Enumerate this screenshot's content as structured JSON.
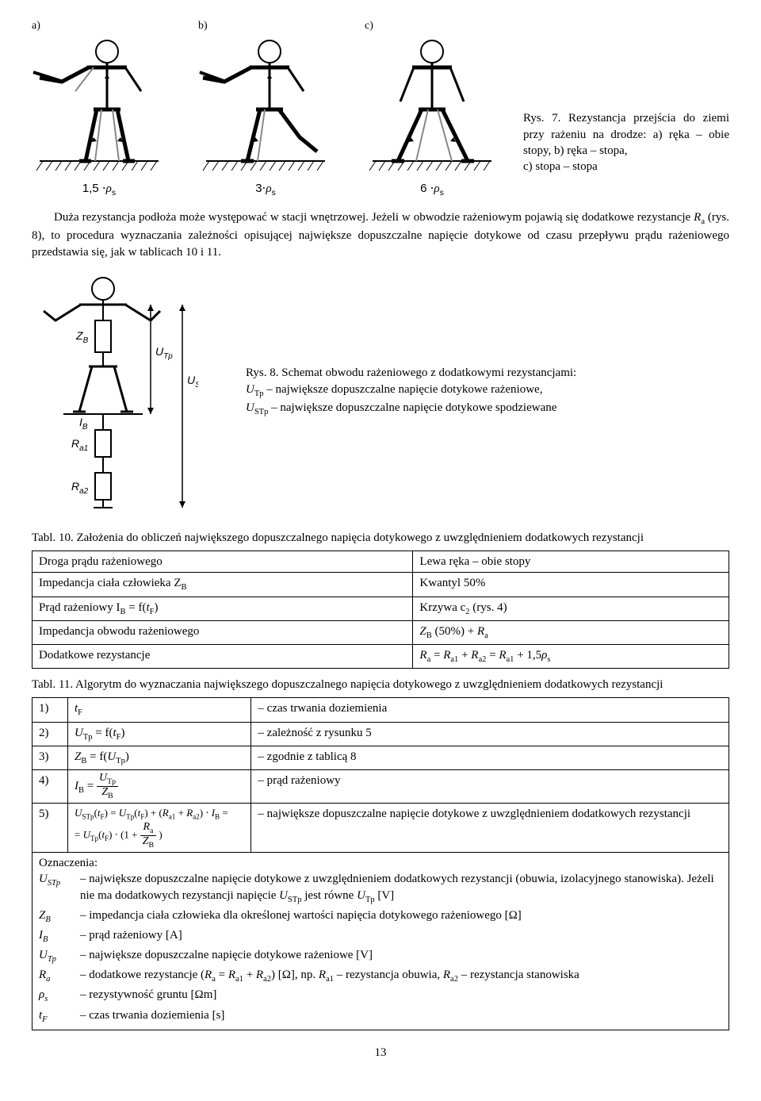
{
  "fig7": {
    "labels": [
      "a)",
      "b)",
      "c)"
    ],
    "rhos": [
      "1,5 ⋅",
      "3⋅",
      "6 ⋅"
    ],
    "rho_var": "ρ",
    "rho_sub": "s",
    "caption_head": "Rys. 7. Rezystancja przejścia do ziemi przy rażeniu na drodze: a) ręka – obie stopy, b) ręka – stopa,",
    "caption_line2": "c) stopa – stopa"
  },
  "para1": "Duża rezystancja podłoża może występować w stacji wnętrzowej. Jeżeli w obwodzie rażeniowym pojawią się dodatkowe rezystancje ",
  "para1_Ra": "R",
  "para1_a": "a",
  "para1_cont": " (rys. 8), to procedura wyznaczania zależności opisującej największe dopuszczalne napięcie dotykowe od czasu przepływu prądu rażeniowego przedstawia się, jak w tablicach 10 i 11.",
  "fig8": {
    "svg_labels": {
      "ZB": "Z",
      "ZB_sub": "B",
      "UTp": "U",
      "UTp_sub": "Tp",
      "USTp": "U",
      "USTp_sub": "STp",
      "IB": "I",
      "IB_sub": "B",
      "Ra1": "R",
      "Ra1_sub": "a1",
      "Ra2": "R",
      "Ra2_sub": "a2"
    },
    "caption_head": "Rys. 8. Schemat obwodu rażeniowego z dodatkowymi rezystancjami:",
    "caption_l2_sym": "U",
    "caption_l2_sub": "Tp",
    "caption_l2_txt": " – największe dopuszczalne napięcie dotykowe rażeniowe,",
    "caption_l3_sym": "U",
    "caption_l3_sub": "STp",
    "caption_l3_txt": " – największe dopuszczalne napięcie dotykowe spodziewane"
  },
  "tab10": {
    "title": "Tabl. 10. Założenia do obliczeń największego dopuszczalnego napięcia dotykowego z uwzględnieniem dodatkowych rezystancji",
    "rows": [
      [
        "Droga prądu rażeniowego",
        "Lewa ręka – obie stopy"
      ],
      [
        "Impedancja ciała człowieka Z",
        "Kwantyl 50%"
      ],
      [
        "Prąd rażeniowy I",
        "Krzywa c"
      ],
      [
        "Impedancja obwodu rażeniowego",
        "Z"
      ],
      [
        "Dodatkowe rezystancje",
        "R"
      ]
    ],
    "row1_r_sub": "B",
    "row2_l_sub": "B",
    "row2_l_txt": " = f(",
    "row2_l_var": "t",
    "row2_l_var_sub": "F",
    "row2_l_end": ")",
    "row2_r_sub": "2",
    "row2_r_txt": " (rys. 4)",
    "row3_r_sub": "B",
    "row3_r_txt": " (50%) + ",
    "row3_r_var": "R",
    "row3_r_var_sub": "a",
    "row4_r": {
      "Ra_sub_a": "a",
      "eq": " = ",
      "Ra1_sub": "a1",
      "plus": " + ",
      "Ra2_sub": "a2",
      "eq2": " = ",
      "Ra1b_sub": "a1",
      "plus2": " + 1,5",
      "rho": "ρ",
      "rho_sub": "s"
    }
  },
  "tab11": {
    "title": "Tabl. 11. Algorytm do wyznaczania największego dopuszczalnego napięcia dotykowego z uwzględnieniem dodatkowych rezystancji",
    "rows": {
      "1": {
        "n": "1)",
        "l_var": "t",
        "l_sub": "F",
        "r": "– czas trwania doziemienia"
      },
      "2": {
        "n": "2)",
        "l_pre": "U",
        "l_sub": "Tp",
        "l_mid": " = f(",
        "l_var2": "t",
        "l_sub2": "F",
        "l_end": ")",
        "r": "– zależność z rysunku 5"
      },
      "3": {
        "n": "3)",
        "l_pre": "Z",
        "l_sub": "B",
        "l_mid": " = f(",
        "l_var2": "U",
        "l_sub2": "Tp",
        "l_end": ")",
        "r": "– zgodnie z tablicą 8"
      },
      "4": {
        "n": "4)",
        "r": "– prąd rażeniowy",
        "frac_lhs": "I",
        "frac_lhs_sub": "B",
        "frac_eq": " = ",
        "frac_num": "U",
        "frac_num_sub": "Tp",
        "frac_den": "Z",
        "frac_den_sub": "B"
      },
      "5": {
        "n": "5)",
        "r": "– największe dopuszczalne napięcie dotykowe z uwzględnieniem dodatkowych rezystancji",
        "line1_a": "U",
        "line1_a_sub": "STp",
        "line1_b": "(",
        "line1_c": "t",
        "line1_c_sub": "F",
        "line1_d": ") = ",
        "line1_e": "U",
        "line1_e_sub": "Tp",
        "line1_f": "(",
        "line1_g": "t",
        "line1_g_sub": "F",
        "line1_h": ") + (",
        "line1_i": "R",
        "line1_i_sub": "a1",
        "line1_j": " + ",
        "line1_k": "R",
        "line1_k_sub": "a2",
        "line1_l": ") ⋅ ",
        "line1_m": "I",
        "line1_m_sub": "B",
        "line1_n": " =",
        "line2_a": "= ",
        "line2_b": "U",
        "line2_b_sub": "Tp",
        "line2_c": "(",
        "line2_d": "t",
        "line2_d_sub": "F",
        "line2_e": ") ⋅ (1 + ",
        "line2_frac_num": "R",
        "line2_frac_num_sub": "a",
        "line2_frac_den": "Z",
        "line2_frac_den_sub": "B",
        "line2_end": ")"
      }
    },
    "ozn_heading": "Oznaczenia:",
    "ozn": [
      {
        "s": "U",
        "sub": "STp",
        "t": "– największe dopuszczalne napięcie dotykowe z uwzględnieniem dodatkowych rezystancji (obuwia, izolacyjnego stanowiska). Jeżeli nie ma dodatkowych rezystancji napięcie ",
        "t2_s": "U",
        "t2_sub": "STp",
        "t3": " jest równe ",
        "t4_s": "U",
        "t4_sub": "Tp",
        "t5": " [V]"
      },
      {
        "s": "Z",
        "sub": "B",
        "t": "– impedancja ciała człowieka dla określonej wartości napięcia dotykowego rażeniowego [Ω]"
      },
      {
        "s": "I",
        "sub": "B",
        "t": "– prąd rażeniowy [A]"
      },
      {
        "s": "U",
        "sub": "Tp",
        "t": "– największe dopuszczalne napięcie dotykowe rażeniowe [V]"
      },
      {
        "s": "R",
        "sub": "a",
        "t": "– dodatkowe rezystancje (",
        "t2_s": "R",
        "t2_sub": "a",
        "t3": " = ",
        "t4_s": "R",
        "t4_sub": "a1",
        "t5": " + ",
        "t6_s": "R",
        "t6_sub": "a2",
        "t7": ") [Ω], np. ",
        "t8_s": "R",
        "t8_sub": "a1",
        "t9": " – rezystancja obuwia, ",
        "t10_s": "R",
        "t10_sub": "a2",
        "t11": " – rezystancja stanowiska"
      },
      {
        "s": "ρ",
        "sub": "s",
        "t": "– rezystywność gruntu [Ωm]"
      },
      {
        "s": "t",
        "sub": "F",
        "t": "– czas trwania doziemienia [s]"
      }
    ]
  },
  "page_number": "13"
}
